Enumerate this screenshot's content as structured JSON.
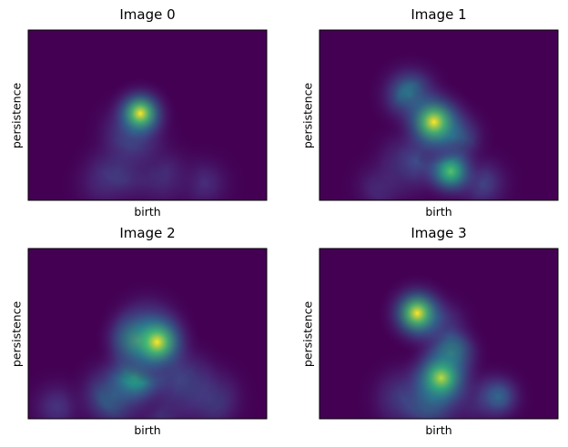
{
  "chart_data": [
    {
      "type": "heatmap",
      "title": "Image 0",
      "xlabel": "birth",
      "ylabel": "persistence",
      "colormap": "viridis",
      "ticks_visible": false,
      "background": "#440154",
      "blobs": [
        {
          "x": 0.47,
          "y": 0.51,
          "intensity": 1.0,
          "spread": 0.05
        },
        {
          "x": 0.44,
          "y": 0.4,
          "intensity": 0.35,
          "spread": 0.07
        },
        {
          "x": 0.38,
          "y": 0.18,
          "intensity": 0.25,
          "spread": 0.07
        },
        {
          "x": 0.52,
          "y": 0.16,
          "intensity": 0.22,
          "spread": 0.07
        },
        {
          "x": 0.31,
          "y": 0.1,
          "intensity": 0.18,
          "spread": 0.06
        },
        {
          "x": 0.63,
          "y": 0.12,
          "intensity": 0.15,
          "spread": 0.06
        },
        {
          "x": 0.74,
          "y": 0.1,
          "intensity": 0.15,
          "spread": 0.06
        }
      ]
    },
    {
      "type": "heatmap",
      "title": "Image 1",
      "xlabel": "birth",
      "ylabel": "persistence",
      "colormap": "viridis",
      "ticks_visible": false,
      "background": "#440154",
      "blobs": [
        {
          "x": 0.38,
          "y": 0.62,
          "intensity": 0.55,
          "spread": 0.06
        },
        {
          "x": 0.48,
          "y": 0.46,
          "intensity": 1.0,
          "spread": 0.06
        },
        {
          "x": 0.56,
          "y": 0.37,
          "intensity": 0.55,
          "spread": 0.06
        },
        {
          "x": 0.55,
          "y": 0.17,
          "intensity": 0.85,
          "spread": 0.05
        },
        {
          "x": 0.38,
          "y": 0.22,
          "intensity": 0.3,
          "spread": 0.07
        },
        {
          "x": 0.45,
          "y": 0.25,
          "intensity": 0.35,
          "spread": 0.06
        },
        {
          "x": 0.26,
          "y": 0.08,
          "intensity": 0.18,
          "spread": 0.06
        },
        {
          "x": 0.68,
          "y": 0.1,
          "intensity": 0.25,
          "spread": 0.06
        }
      ]
    },
    {
      "type": "heatmap",
      "title": "Image 2",
      "xlabel": "birth",
      "ylabel": "persistence",
      "colormap": "viridis",
      "ticks_visible": false,
      "background": "#440154",
      "blobs": [
        {
          "x": 0.46,
          "y": 0.46,
          "intensity": 0.9,
          "spread": 0.06
        },
        {
          "x": 0.54,
          "y": 0.45,
          "intensity": 1.0,
          "spread": 0.06
        },
        {
          "x": 0.5,
          "y": 0.52,
          "intensity": 0.5,
          "spread": 0.07
        },
        {
          "x": 0.45,
          "y": 0.25,
          "intensity": 0.75,
          "spread": 0.06
        },
        {
          "x": 0.36,
          "y": 0.14,
          "intensity": 0.5,
          "spread": 0.07
        },
        {
          "x": 0.55,
          "y": 0.3,
          "intensity": 0.4,
          "spread": 0.07
        },
        {
          "x": 0.65,
          "y": 0.22,
          "intensity": 0.35,
          "spread": 0.07
        },
        {
          "x": 0.76,
          "y": 0.12,
          "intensity": 0.3,
          "spread": 0.07
        },
        {
          "x": 0.58,
          "y": 0.08,
          "intensity": 0.28,
          "spread": 0.07
        },
        {
          "x": 0.12,
          "y": 0.07,
          "intensity": 0.18,
          "spread": 0.06
        }
      ]
    },
    {
      "type": "heatmap",
      "title": "Image 3",
      "xlabel": "birth",
      "ylabel": "persistence",
      "colormap": "viridis",
      "ticks_visible": false,
      "background": "#440154",
      "blobs": [
        {
          "x": 0.41,
          "y": 0.62,
          "intensity": 1.0,
          "spread": 0.055
        },
        {
          "x": 0.5,
          "y": 0.54,
          "intensity": 0.35,
          "spread": 0.06
        },
        {
          "x": 0.55,
          "y": 0.38,
          "intensity": 0.75,
          "spread": 0.055
        },
        {
          "x": 0.51,
          "y": 0.24,
          "intensity": 0.95,
          "spread": 0.06
        },
        {
          "x": 0.47,
          "y": 0.12,
          "intensity": 0.55,
          "spread": 0.07
        },
        {
          "x": 0.36,
          "y": 0.12,
          "intensity": 0.3,
          "spread": 0.07
        },
        {
          "x": 0.66,
          "y": 0.12,
          "intensity": 0.25,
          "spread": 0.06
        },
        {
          "x": 0.75,
          "y": 0.13,
          "intensity": 0.4,
          "spread": 0.05
        }
      ]
    }
  ]
}
